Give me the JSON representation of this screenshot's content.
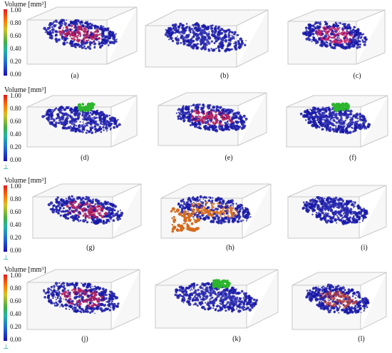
{
  "colorbar": {
    "title": "Volume [mm³]",
    "ticks": [
      "1.00",
      "0.80",
      "0.60",
      "0.40",
      "0.20",
      "0.00"
    ]
  },
  "panels": [
    {
      "label": "(a)",
      "dominant": "#b01a5a"
    },
    {
      "label": "(b)",
      "dominant": "#2a2ab0"
    },
    {
      "label": "(c)",
      "dominant": "#c0206a"
    },
    {
      "label": "(d)",
      "dominant": "#2a2ab0"
    },
    {
      "label": "(e)",
      "dominant": "#b01a5a"
    },
    {
      "label": "(f)",
      "dominant": "#2a2ab0"
    },
    {
      "label": "(g)",
      "dominant": "#b01a5a"
    },
    {
      "label": "(h)",
      "dominant": "#d56a1c"
    },
    {
      "label": "(i)",
      "dominant": "#2a2ab0"
    },
    {
      "label": "(j)",
      "dominant": "#b01a5a"
    },
    {
      "label": "(k)",
      "dominant": "#2a2ab0"
    },
    {
      "label": "(l)",
      "dominant": "#b03a40"
    }
  ],
  "colors": {
    "box_edge": "#c8c8c8",
    "box_fill": "#f2f2f2",
    "blue": "#1a1aa8",
    "magenta": "#b01a5a",
    "green": "#2db52d",
    "orange": "#d56a1c"
  }
}
